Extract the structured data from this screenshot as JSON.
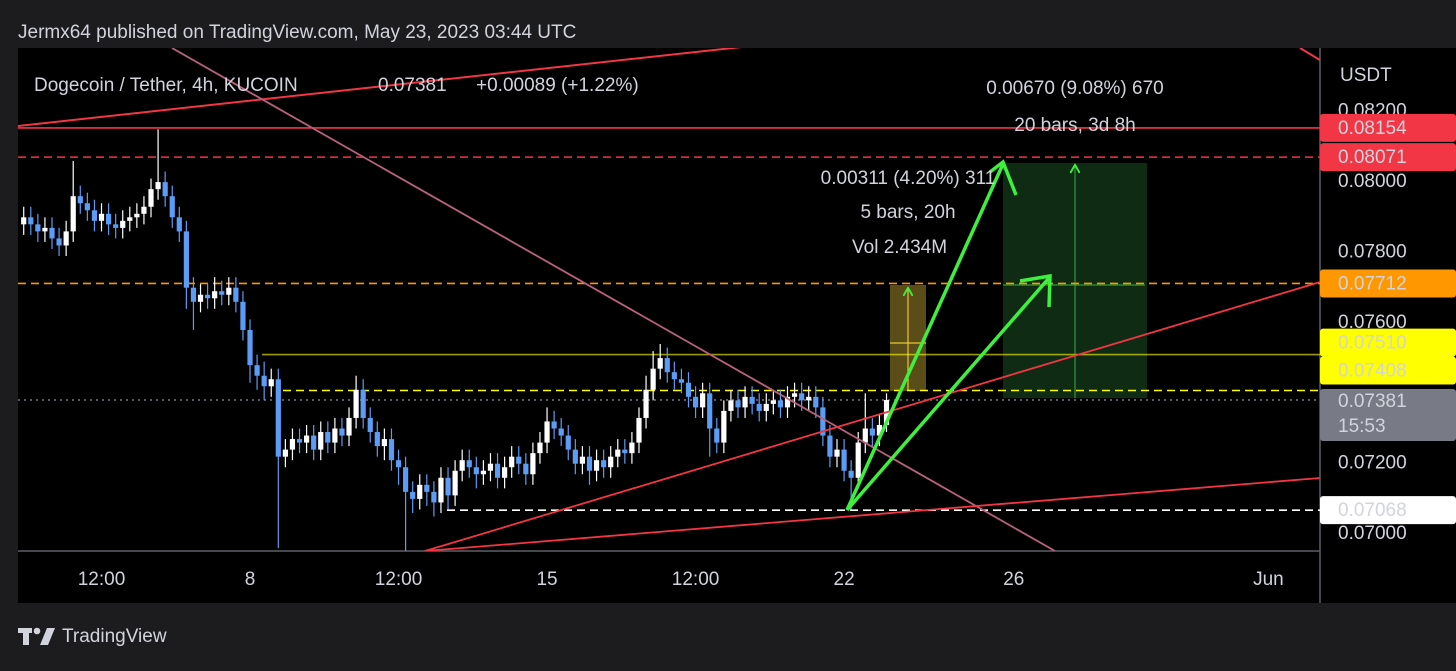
{
  "header": "Jermx64 published on TradingView.com, May 23, 2023 03:44 UTC",
  "footer": "TradingView",
  "chart_data": {
    "type": "candlestick",
    "title": "Dogecoin / Tether, 4h, KUCOIN",
    "last": 0.07381,
    "change": "+0.00089 (+1.22%)",
    "y_axis_label": "USDT",
    "up_color": "#ffffff",
    "down_color": "#5b9cf6",
    "grid": false,
    "xlim": [
      2.532,
      33.216
    ],
    "xticks": [
      {
        "value": 4.5,
        "label": "12:00"
      },
      8,
      {
        "value": 11.5,
        "label": "12:00"
      },
      15,
      {
        "value": 18.5,
        "label": "12:00"
      },
      22,
      26,
      {
        "value": 32,
        "label": "Jun"
      }
    ],
    "ylim": [
      0.06952,
      0.08381
    ],
    "yticks": [
      {
        "value": 0.082,
        "label": "0.08200"
      },
      {
        "value": 0.08,
        "label": "0.08000"
      },
      {
        "value": 0.078,
        "label": "0.07800"
      },
      {
        "value": 0.076,
        "label": "0.07600"
      },
      {
        "value": 0.072,
        "label": "0.07200"
      },
      {
        "value": 0.07,
        "label": "0.07000"
      }
    ],
    "x": [
      2.6667,
      2.8333,
      3,
      3.1667,
      3.3333,
      3.5,
      3.6667,
      3.8333,
      4,
      4.1667,
      4.3333,
      4.5,
      4.6667,
      4.8333,
      5,
      5.1667,
      5.3333,
      5.5,
      5.6667,
      5.8333,
      6,
      6.1667,
      6.3333,
      6.5,
      6.6667,
      6.8333,
      7,
      7.1667,
      7.3333,
      7.5,
      7.6667,
      7.8333,
      8,
      8.1667,
      8.3333,
      8.5,
      8.6667,
      8.8333,
      9,
      9.1667,
      9.3333,
      9.5,
      9.6667,
      9.8333,
      10,
      10.1667,
      10.3333,
      10.5,
      10.6667,
      10.8333,
      11,
      11.1667,
      11.3333,
      11.5,
      11.6667,
      11.8333,
      12,
      12.1667,
      12.3333,
      12.5,
      12.6667,
      12.8333,
      13,
      13.1667,
      13.3333,
      13.5,
      13.6667,
      13.8333,
      14,
      14.1667,
      14.3333,
      14.5,
      14.6667,
      14.8333,
      15,
      15.1667,
      15.3333,
      15.5,
      15.6667,
      15.8333,
      16,
      16.1667,
      16.3333,
      16.5,
      16.6667,
      16.8333,
      17,
      17.1667,
      17.3333,
      17.5,
      17.6667,
      17.8333,
      18,
      18.1667,
      18.3333,
      18.5,
      18.6667,
      18.8333,
      19,
      19.1667,
      19.3333,
      19.5,
      19.6667,
      19.8333,
      20,
      20.1667,
      20.3333,
      20.5,
      20.6667,
      20.8333,
      21,
      21.1667,
      21.3333,
      21.5,
      21.6667,
      21.8333,
      22,
      22.1667,
      22.3333,
      22.5,
      22.6667,
      22.8333,
      23
    ],
    "open": [
      0.0788,
      0.079,
      0.0788,
      0.0786,
      0.0787,
      0.0784,
      0.0782,
      0.0786,
      0.0796,
      0.0794,
      0.0792,
      0.0789,
      0.0791,
      0.0788,
      0.0787,
      0.0789,
      0.079,
      0.0791,
      0.0793,
      0.0798,
      0.08,
      0.0796,
      0.079,
      0.0786,
      0.077,
      0.0766,
      0.0768,
      0.0767,
      0.0769,
      0.0768,
      0.077,
      0.0766,
      0.0758,
      0.0748,
      0.0745,
      0.0742,
      0.0744,
      0.0722,
      0.0724,
      0.0727,
      0.0726,
      0.0728,
      0.0724,
      0.0729,
      0.0726,
      0.073,
      0.0728,
      0.0733,
      0.0741,
      0.0733,
      0.0729,
      0.0725,
      0.0727,
      0.0721,
      0.0719,
      0.0712,
      0.071,
      0.0714,
      0.0712,
      0.0709,
      0.0716,
      0.0711,
      0.0718,
      0.0721,
      0.0719,
      0.0717,
      0.0718,
      0.072,
      0.0716,
      0.0719,
      0.0722,
      0.072,
      0.0717,
      0.0723,
      0.0726,
      0.0732,
      0.073,
      0.0728,
      0.0724,
      0.072,
      0.0722,
      0.0718,
      0.0721,
      0.0719,
      0.0722,
      0.0724,
      0.0723,
      0.0726,
      0.0733,
      0.0741,
      0.0747,
      0.075,
      0.0746,
      0.0744,
      0.0743,
      0.0739,
      0.0736,
      0.074,
      0.073,
      0.0726,
      0.0735,
      0.0738,
      0.0736,
      0.0739,
      0.0737,
      0.0735,
      0.0737,
      0.0738,
      0.0736,
      0.0739,
      0.074,
      0.0738,
      0.0739,
      0.0736,
      0.0728,
      0.0722,
      0.0724,
      0.0718,
      0.0716,
      0.0726,
      0.073,
      0.0728,
      0.0731
    ],
    "high": [
      0.0793,
      0.0793,
      0.0791,
      0.079,
      0.079,
      0.0787,
      0.0789,
      0.0806,
      0.0799,
      0.0797,
      0.0795,
      0.0794,
      0.0794,
      0.0791,
      0.0792,
      0.0793,
      0.0794,
      0.0796,
      0.0801,
      0.0815,
      0.0803,
      0.0799,
      0.0793,
      0.0789,
      0.0773,
      0.0771,
      0.0771,
      0.0773,
      0.0772,
      0.0773,
      0.0773,
      0.0769,
      0.0761,
      0.0751,
      0.0749,
      0.0747,
      0.0747,
      0.0727,
      0.073,
      0.073,
      0.0731,
      0.0731,
      0.0732,
      0.0732,
      0.0733,
      0.0733,
      0.0736,
      0.0745,
      0.0744,
      0.0736,
      0.0732,
      0.073,
      0.073,
      0.0724,
      0.0722,
      0.0715,
      0.0717,
      0.0717,
      0.0715,
      0.0719,
      0.0719,
      0.0721,
      0.0724,
      0.0724,
      0.0722,
      0.0721,
      0.0723,
      0.0723,
      0.0722,
      0.0725,
      0.0725,
      0.0723,
      0.0726,
      0.0729,
      0.0736,
      0.0735,
      0.0733,
      0.0731,
      0.0727,
      0.0725,
      0.0725,
      0.0724,
      0.0724,
      0.0725,
      0.0727,
      0.0727,
      0.0729,
      0.0736,
      0.0745,
      0.0752,
      0.0754,
      0.0753,
      0.0749,
      0.0747,
      0.0746,
      0.0742,
      0.0743,
      0.0743,
      0.0733,
      0.0738,
      0.0741,
      0.0741,
      0.0742,
      0.0742,
      0.074,
      0.074,
      0.0741,
      0.0741,
      0.0742,
      0.0743,
      0.0743,
      0.0742,
      0.0742,
      0.0739,
      0.0731,
      0.0727,
      0.0727,
      0.0721,
      0.0729,
      0.074,
      0.0733,
      0.0734,
      0.074
    ],
    "low": [
      0.0785,
      0.0785,
      0.0783,
      0.0783,
      0.0781,
      0.0779,
      0.0779,
      0.0783,
      0.0791,
      0.0789,
      0.0786,
      0.0786,
      0.0785,
      0.0784,
      0.0784,
      0.0786,
      0.0787,
      0.0788,
      0.079,
      0.0795,
      0.0793,
      0.0787,
      0.0783,
      0.0764,
      0.0758,
      0.0763,
      0.0764,
      0.0764,
      0.0765,
      0.0765,
      0.0763,
      0.0755,
      0.0743,
      0.0741,
      0.0738,
      0.0739,
      0.0696,
      0.0719,
      0.0721,
      0.0723,
      0.0723,
      0.0721,
      0.0721,
      0.0723,
      0.0723,
      0.0725,
      0.0725,
      0.073,
      0.073,
      0.0726,
      0.0722,
      0.0721,
      0.0718,
      0.0714,
      0.0695,
      0.0706,
      0.0707,
      0.0708,
      0.0705,
      0.0706,
      0.0707,
      0.0708,
      0.0715,
      0.0716,
      0.0713,
      0.0714,
      0.0715,
      0.0713,
      0.0713,
      0.0716,
      0.0717,
      0.0714,
      0.0714,
      0.072,
      0.0723,
      0.0727,
      0.0725,
      0.0721,
      0.0717,
      0.0717,
      0.0714,
      0.0715,
      0.0716,
      0.0716,
      0.0719,
      0.072,
      0.072,
      0.0723,
      0.073,
      0.0738,
      0.0744,
      0.0743,
      0.0741,
      0.074,
      0.0736,
      0.0733,
      0.0733,
      0.0722,
      0.0723,
      0.0723,
      0.0732,
      0.0733,
      0.0733,
      0.0734,
      0.0732,
      0.0732,
      0.0734,
      0.0733,
      0.0733,
      0.0736,
      0.0735,
      0.0735,
      0.0733,
      0.0725,
      0.0719,
      0.0719,
      0.0715,
      0.0707,
      0.0713,
      0.0723,
      0.0725,
      0.0725,
      0.0729
    ],
    "close": [
      0.079,
      0.0788,
      0.0786,
      0.0787,
      0.0784,
      0.0782,
      0.0786,
      0.0796,
      0.0794,
      0.0792,
      0.0789,
      0.0791,
      0.0788,
      0.0787,
      0.0789,
      0.079,
      0.0791,
      0.0793,
      0.0798,
      0.08,
      0.0796,
      0.079,
      0.0786,
      0.077,
      0.0766,
      0.0768,
      0.0767,
      0.0769,
      0.0768,
      0.077,
      0.0766,
      0.0758,
      0.0748,
      0.0745,
      0.0742,
      0.0744,
      0.0722,
      0.0724,
      0.0727,
      0.0726,
      0.0728,
      0.0724,
      0.0729,
      0.0726,
      0.073,
      0.0728,
      0.0733,
      0.0741,
      0.0733,
      0.0729,
      0.0725,
      0.0727,
      0.0721,
      0.0719,
      0.0712,
      0.071,
      0.0714,
      0.0712,
      0.0709,
      0.0716,
      0.0711,
      0.0718,
      0.0721,
      0.0719,
      0.0717,
      0.0718,
      0.072,
      0.0716,
      0.0719,
      0.0722,
      0.072,
      0.0717,
      0.0723,
      0.0726,
      0.0732,
      0.073,
      0.0728,
      0.0724,
      0.072,
      0.0722,
      0.0718,
      0.0721,
      0.0719,
      0.0722,
      0.0724,
      0.0723,
      0.0726,
      0.0733,
      0.0741,
      0.0747,
      0.075,
      0.0746,
      0.0744,
      0.0743,
      0.0739,
      0.0736,
      0.074,
      0.073,
      0.0726,
      0.0735,
      0.0738,
      0.0736,
      0.0739,
      0.0737,
      0.0735,
      0.0737,
      0.0738,
      0.0736,
      0.0739,
      0.074,
      0.0738,
      0.0739,
      0.0736,
      0.0728,
      0.0722,
      0.0724,
      0.0718,
      0.0716,
      0.0726,
      0.073,
      0.0728,
      0.0731,
      0.07381
    ],
    "levels": [
      {
        "value": 0.08154,
        "color": "#f23645",
        "text_color": "#ffffff",
        "style": "solid"
      },
      {
        "value": 0.08071,
        "color": "#f23645",
        "text_color": "#ffffff",
        "style": "dashed"
      },
      {
        "value": 0.07712,
        "color": "#ff9800",
        "text_color": "#000000",
        "style": "dashed"
      },
      {
        "value": 0.0751,
        "label": "0.07510",
        "color": "#ffff00",
        "text_color": "#000000",
        "style": "solid"
      },
      {
        "value": 0.07408,
        "color": "#ffff00",
        "text_color": "#000000",
        "style": "dashed"
      },
      {
        "value": 0.07381,
        "color": "#787b86",
        "text_color": "#ffffff",
        "style": "dotted",
        "countdown": "15:53"
      },
      {
        "value": 0.07068,
        "color": "#ffffff",
        "text_color": "#000000",
        "style": "dashed"
      }
    ],
    "annotations": [
      "0.00670 (9.08%) 670",
      "20 bars, 3d 8h",
      "0.00311 (4.20%) 311",
      "5 bars, 20h",
      "Vol 2.434M"
    ]
  }
}
